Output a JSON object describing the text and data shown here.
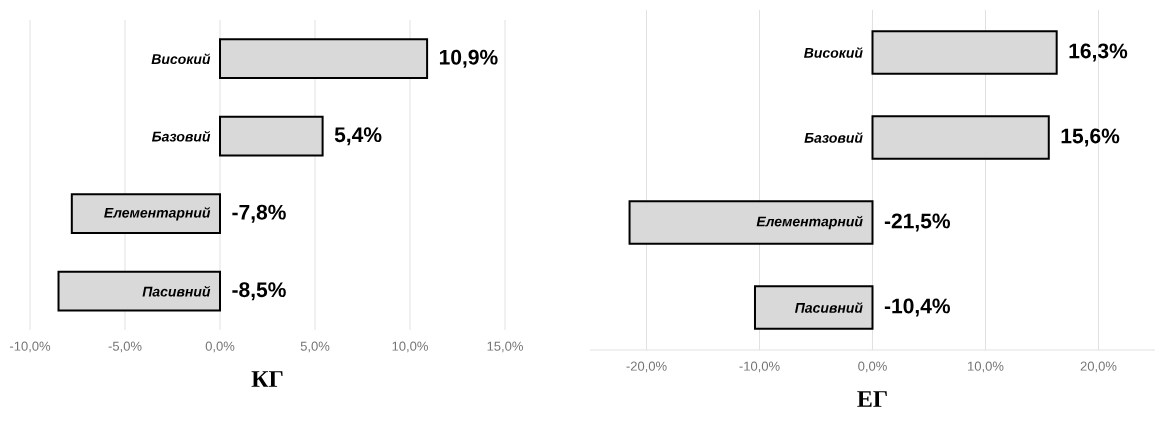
{
  "chart_data": [
    {
      "type": "bar",
      "orientation": "horizontal",
      "xlabel": "КГ",
      "categories": [
        "Високий",
        "Базовий",
        "Елементарний",
        "Пасивний"
      ],
      "values": [
        10.9,
        5.4,
        -7.8,
        -8.5
      ],
      "value_labels": [
        "10,9%",
        "5,4%",
        "-7,8%",
        "-8,5%"
      ],
      "color": "#d9d9d9",
      "xlim": [
        -10,
        15
      ],
      "xticks": [
        {
          "value": -10,
          "label": "-10,0%"
        },
        {
          "value": -5,
          "label": "-5,0%"
        },
        {
          "value": 0,
          "label": "0,0%"
        },
        {
          "value": 5,
          "label": "5,0%"
        },
        {
          "value": 10,
          "label": "10,0%"
        },
        {
          "value": 15,
          "label": "15,0%"
        }
      ],
      "grid": "x"
    },
    {
      "type": "bar",
      "orientation": "horizontal",
      "xlabel": "ЕГ",
      "categories": [
        "Високий",
        "Базовий",
        "Елементарний",
        "Пасивний"
      ],
      "values": [
        16.3,
        15.6,
        -21.5,
        -10.4
      ],
      "value_labels": [
        "16,3%",
        "15,6%",
        "-21,5%",
        "-10,4%"
      ],
      "color": "#d9d9d9",
      "xlim": [
        -25,
        25
      ],
      "xticks": [
        {
          "value": -20,
          "label": "-20,0%"
        },
        {
          "value": -10,
          "label": "-10,0%"
        },
        {
          "value": 0,
          "label": "0,0%"
        },
        {
          "value": 10,
          "label": "10,0%"
        },
        {
          "value": 20,
          "label": "20,0%"
        }
      ],
      "grid": "x"
    }
  ]
}
